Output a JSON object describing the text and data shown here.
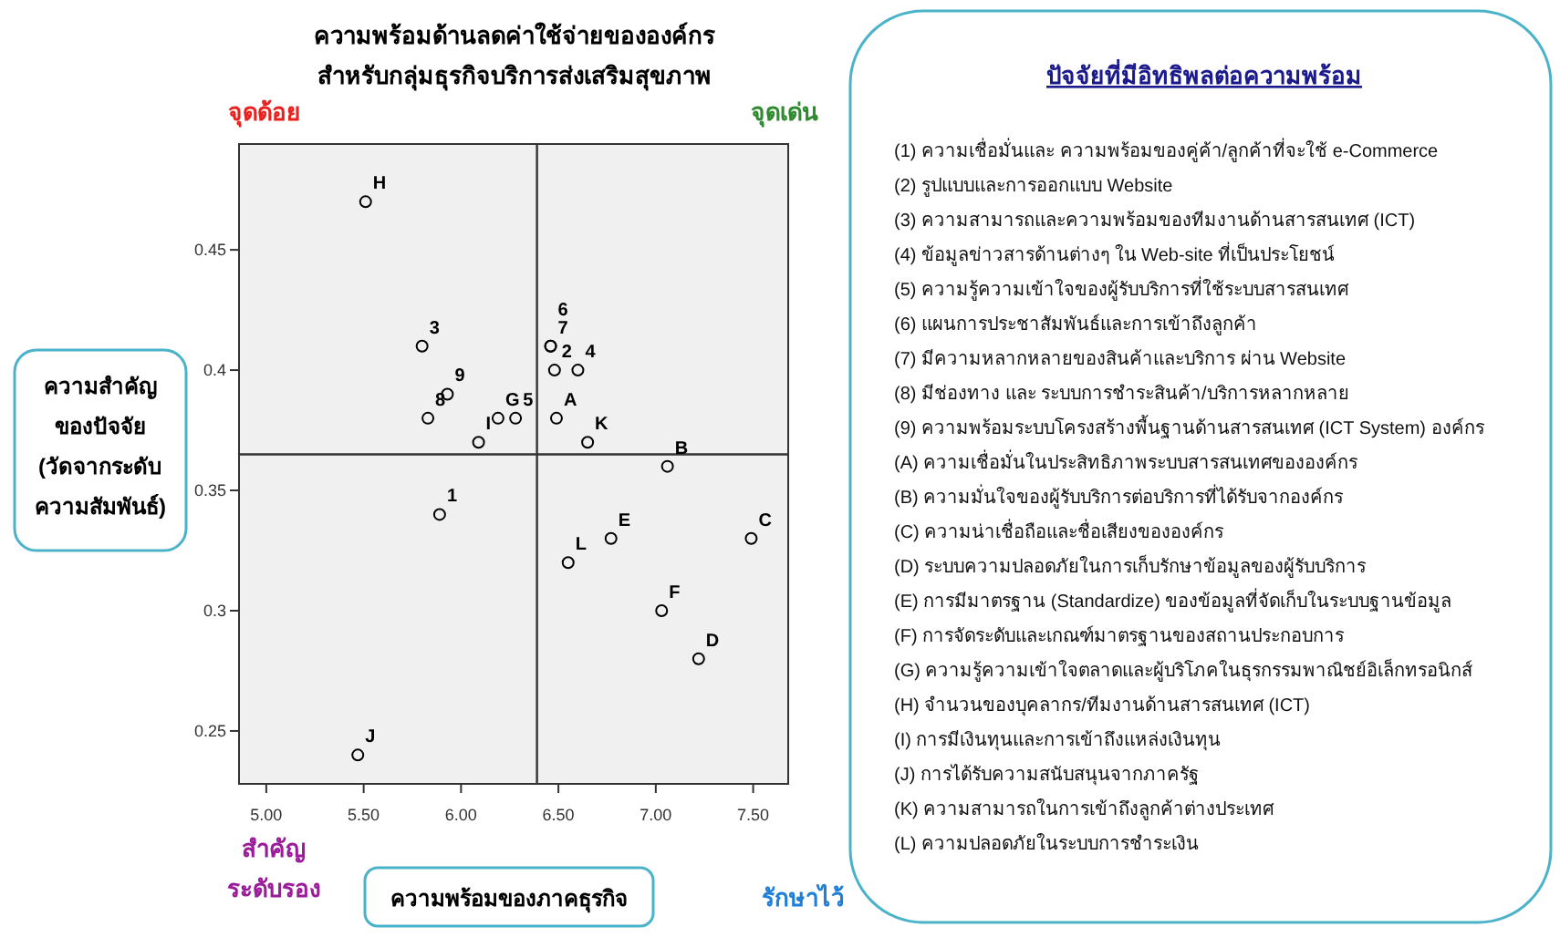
{
  "chart_data": [
    {
      "type": "scatter",
      "title": "ความพร้อมด้านลดค่าใช้จ่ายขององค์กร",
      "subtitle": "สำหรับกลุ่มธุรกิจบริการส่งเสริมสุขภาพ",
      "xlabel": "ความพร้อมของภาคธุรกิจ",
      "ylabel": "ความสำคัญ ของปัจจัย (วัดจากระดับ ความสัมพันธ์)",
      "x": [
        5.51,
        5.8,
        5.93,
        5.83,
        6.19,
        6.28,
        6.09,
        6.46,
        6.46,
        6.48,
        6.6,
        6.49,
        6.65,
        7.06,
        5.89,
        6.77,
        6.55,
        7.49,
        7.03,
        7.22,
        5.47
      ],
      "values": [
        0.47,
        0.41,
        0.39,
        0.38,
        0.38,
        0.38,
        0.37,
        0.41,
        0.41,
        0.4,
        0.4,
        0.38,
        0.37,
        0.36,
        0.34,
        0.33,
        0.32,
        0.33,
        0.3,
        0.28,
        0.24
      ],
      "color": "#000000",
      "marker": "circle",
      "grid": false,
      "xlim": [
        4.86,
        7.68
      ],
      "ylim": [
        0.228,
        0.494
      ],
      "xticks": [
        {
          "value": 5,
          "label": "5.00"
        },
        {
          "value": 5.5,
          "label": "5.50"
        },
        {
          "value": 6,
          "label": "6.00"
        },
        {
          "value": 6.5,
          "label": "6.50"
        },
        {
          "value": 7,
          "label": "7.00"
        },
        {
          "value": 7.5,
          "label": "7.50"
        }
      ],
      "yticks": [
        0.25,
        0.3,
        0.35,
        0.4,
        0.45
      ],
      "ref_lines": [
        {
          "axis": "x",
          "value": 6.39
        },
        {
          "axis": "y",
          "value": 0.365
        }
      ],
      "annotations": [
        {
          "text": "H",
          "x": 5.51,
          "y": 0.47
        },
        {
          "text": "3",
          "x": 5.8,
          "y": 0.41
        },
        {
          "text": "9",
          "x": 5.93,
          "y": 0.39
        },
        {
          "text": "8",
          "x": 5.83,
          "y": 0.38
        },
        {
          "text": "G",
          "x": 6.19,
          "y": 0.38
        },
        {
          "text": "5",
          "x": 6.28,
          "y": 0.38
        },
        {
          "text": "I",
          "x": 6.09,
          "y": 0.37
        },
        {
          "text": "7",
          "x": 6.46,
          "y": 0.41
        },
        {
          "text": "6",
          "x": 6.46,
          "y": 0.41
        },
        {
          "text": "2",
          "x": 6.48,
          "y": 0.4
        },
        {
          "text": "4",
          "x": 6.6,
          "y": 0.4
        },
        {
          "text": "A",
          "x": 6.49,
          "y": 0.38
        },
        {
          "text": "K",
          "x": 6.65,
          "y": 0.37
        },
        {
          "text": "B",
          "x": 7.06,
          "y": 0.36
        },
        {
          "text": "1",
          "x": 5.89,
          "y": 0.34
        },
        {
          "text": "E",
          "x": 6.77,
          "y": 0.33
        },
        {
          "text": "L",
          "x": 6.55,
          "y": 0.32
        },
        {
          "text": "C",
          "x": 7.49,
          "y": 0.33
        },
        {
          "text": "F",
          "x": 7.03,
          "y": 0.3
        },
        {
          "text": "D",
          "x": 7.22,
          "y": 0.28
        },
        {
          "text": "J",
          "x": 5.47,
          "y": 0.24
        },
        "จุดด้อย",
        "จุดเด่น",
        "สำคัญ ระดับรอง",
        "รักษาไว้"
      ]
    },
    {
      "type": "other",
      "title": "ปัจจัยที่มีอิทธิพลต่อความพร้อม",
      "annotations": [
        "(1) ความเชื่อมั่นและ ความพร้อมของคู่ค้า/ลูกค้าที่จะใช้ e-Commerce",
        "(2) รูปแบบและการออกแบบ Website",
        "(3) ความสามารถและความพร้อมของทีมงานด้านสารสนเทศ (ICT)",
        "(4) ข้อมูลข่าวสารด้านต่างๆ ใน Web-site ที่เป็นประโยชน์",
        "(5) ความรู้ความเข้าใจของผู้รับบริการที่ใช้ระบบสารสนเทศ",
        "(6) แผนการประชาสัมพันธ์และการเข้าถึงลูกค้า",
        "(7) มีความหลากหลายของสินค้าและบริการ ผ่าน Website",
        "(8) มีช่องทาง และ ระบบการชำระสินค้า/บริการหลากหลาย",
        "(9) ความพร้อมระบบโครงสร้างพื้นฐานด้านสารสนเทศ (ICT System) องค์กร",
        "(A) ความเชื่อมั่นในประสิทธิภาพระบบสารสนเทศขององค์กร",
        "(B) ความมั่นใจของผู้รับบริการต่อบริการที่ได้รับจากองค์กร",
        "(C) ความน่าเชื่อถือและชื่อเสียงขององค์กร",
        "(D) ระบบความปลอดภัยในการเก็บรักษาข้อมูลของผู้รับบริการ",
        "(E) การมีมาตรฐาน (Standardize) ของข้อมูลที่จัดเก็บในระบบฐานข้อมูล",
        "(F) การจัดระดับและเกณฑ์มาตรฐานของสถานประกอบการ",
        "(G) ความรู้ความเข้าใจตลาดและผู้บริโภคในธุรกรรมพาณิชย์อิเล็กทรอนิกส์",
        "(H) จำนวนของบุคลากร/ทีมงานด้านสารสนเทศ (ICT)",
        "(I) การมีเงินทุนและการเข้าถึงแหล่งเงินทุน",
        "(J) การได้รับความสนับสนุนจากภาครัฐ",
        "(K) ความสามารถในการเข้าถึงลูกค้าต่างประเทศ",
        "(L) ความปลอดภัยในระบบการชำระเงิน"
      ]
    }
  ]
}
